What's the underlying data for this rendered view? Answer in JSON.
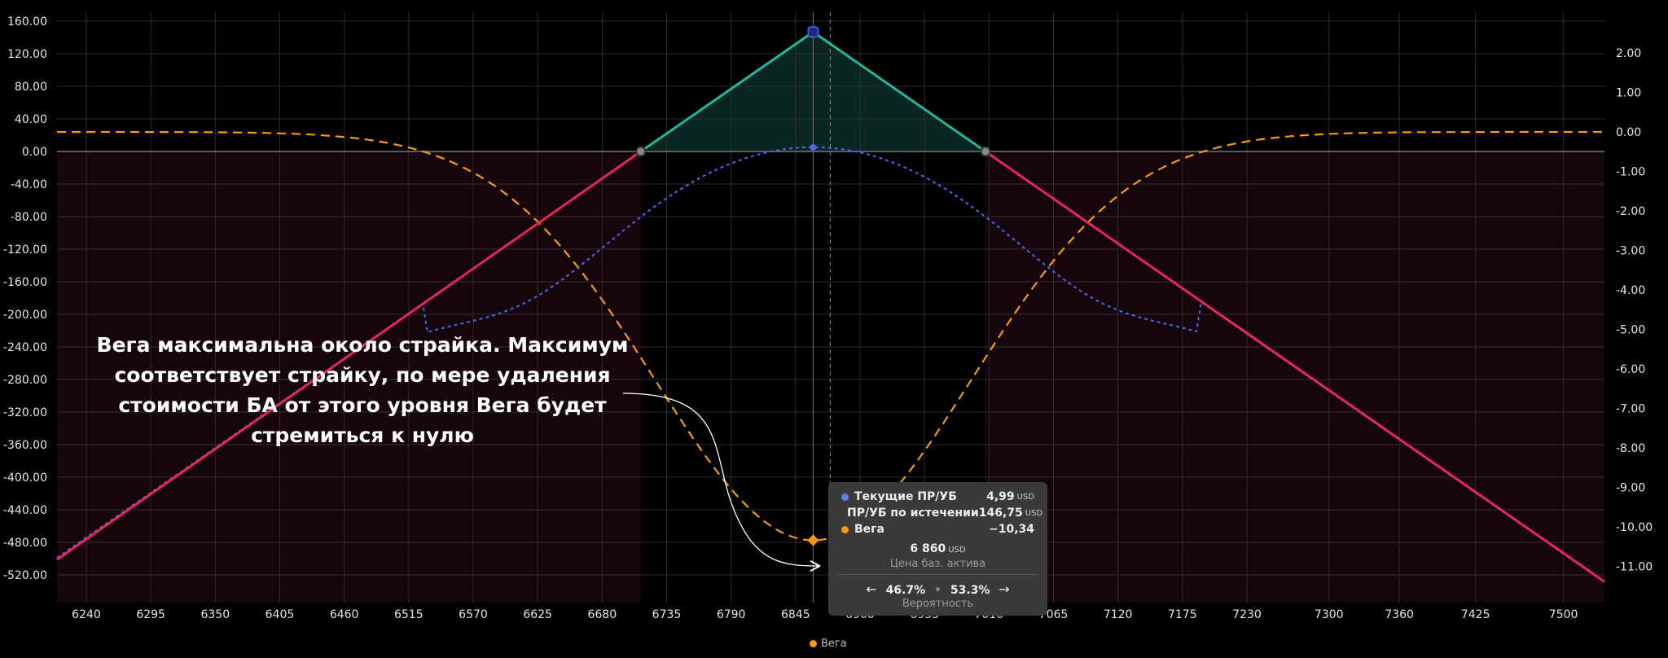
{
  "chart_data": {
    "type": "line",
    "x_ticks": [
      "6240",
      "6295",
      "6350",
      "6405",
      "6460",
      "6515",
      "6570",
      "6625",
      "6680",
      "6735",
      "6790",
      "6845",
      "6900",
      "6955",
      "7010",
      "7065",
      "7120",
      "7175",
      "7230",
      "7300",
      "7360",
      "7425",
      "7500"
    ],
    "y_left_ticks": [
      "160.00",
      "120.00",
      "80.00",
      "40.00",
      "0.00",
      "-40.00",
      "-80.00",
      "-120.00",
      "-160.00",
      "-200.00",
      "-240.00",
      "-280.00",
      "-320.00",
      "-360.00",
      "-400.00",
      "-440.00",
      "-480.00",
      "-520.00"
    ],
    "y_right_ticks": [
      "2.00",
      "1.00",
      "0.00",
      "-1.00",
      "-2.00",
      "-3.00",
      "-4.00",
      "-5.00",
      "-6.00",
      "-7.00",
      "-8.00",
      "-9.00",
      "-10.00",
      "-11.00"
    ],
    "xlim": [
      6215,
      7535
    ],
    "ylim_left": [
      -540,
      170
    ],
    "ylim_right": [
      -11.5,
      2.5
    ],
    "strikes": {
      "lower": 6713,
      "center": 6860,
      "upper": 7007
    },
    "series": [
      {
        "name": "ПР/УБ по истечении",
        "color_up": "#26b59a",
        "color_down": "#e5265f",
        "points": [
          [
            6215,
            -501.25
          ],
          [
            6713,
            0
          ],
          [
            6860,
            146.75
          ],
          [
            7007,
            0
          ],
          [
            7535,
            -528.25
          ]
        ]
      },
      {
        "name": "Текущие ПР/УБ",
        "color": "#4a68f0",
        "center_value": 4.99,
        "sigma": 165
      },
      {
        "name": "Вега",
        "color": "#f39c12",
        "min_value": -10.34,
        "sigma": 135
      }
    ],
    "grid": true,
    "legend_position": "bottom-center"
  },
  "annotation": {
    "lines": [
      "Вега максимальна около страйка. Максимум",
      "соответствует страйку, по мере удаления",
      "стоимости БА от этого уровня Вега будет",
      "стремиться к нулю"
    ]
  },
  "tooltip": {
    "rows": [
      {
        "label": "Текущие ПР/УБ",
        "value": "4,99",
        "unit": "USD",
        "color": "#5b86e5"
      },
      {
        "label": "ПР/УБ по истечении",
        "value": "146,75",
        "unit": "USD",
        "color": "#26b59a"
      },
      {
        "label": "Вега",
        "value": "−10,34",
        "unit": "",
        "color": "#f39c12"
      }
    ],
    "price": "6 860",
    "price_unit": "USD",
    "price_label": "Цена баз. актива",
    "prob_left": "46.7%",
    "prob_right": "53.3%",
    "prob_sep": "•",
    "prob_label": "Вероятность",
    "arrow_left": "←",
    "arrow_right": "→"
  },
  "legend": {
    "label": "Вега",
    "color": "#f39c12"
  }
}
